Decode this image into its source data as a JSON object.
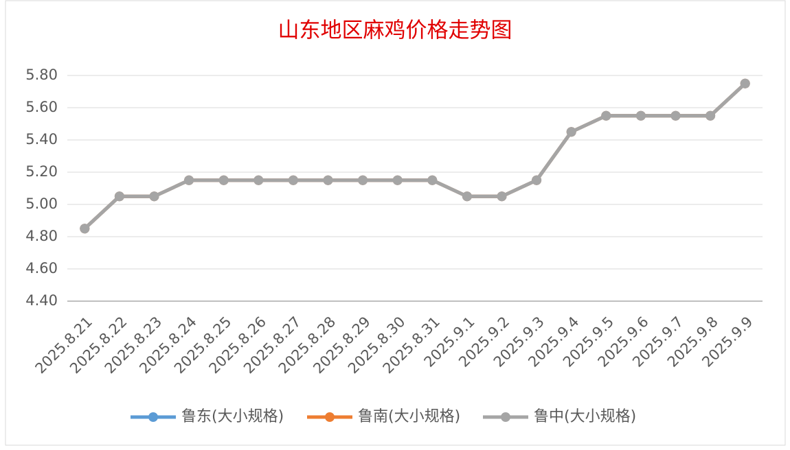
{
  "chart_data": {
    "type": "line",
    "title": "山东地区麻鸡价格走势图",
    "categories": [
      "2025.8.21",
      "2025.8.22",
      "2025.8.23",
      "2025.8.24",
      "2025.8.25",
      "2025.8.26",
      "2025.8.27",
      "2025.8.28",
      "2025.8.29",
      "2025.8.30",
      "2025.8.31",
      "2025.9.1",
      "2025.9.2",
      "2025.9.3",
      "2025.9.4",
      "2025.9.5",
      "2025.9.6",
      "2025.9.7",
      "2025.9.8",
      "2025.9.9"
    ],
    "series": [
      {
        "name": "鲁东(大小规格)",
        "color": "#5b9bd5",
        "values": [
          4.85,
          5.05,
          5.05,
          5.15,
          5.15,
          5.15,
          5.15,
          5.15,
          5.15,
          5.15,
          5.15,
          5.05,
          5.05,
          5.15,
          5.45,
          5.55,
          5.55,
          5.55,
          5.55,
          5.75
        ]
      },
      {
        "name": "鲁南(大小规格)",
        "color": "#ed7d31",
        "values": [
          4.85,
          5.05,
          5.05,
          5.15,
          5.15,
          5.15,
          5.15,
          5.15,
          5.15,
          5.15,
          5.15,
          5.05,
          5.05,
          5.15,
          5.45,
          5.55,
          5.55,
          5.55,
          5.55,
          5.75
        ]
      },
      {
        "name": "鲁中(大小规格)",
        "color": "#a5a5a5",
        "values": [
          4.85,
          5.05,
          5.05,
          5.15,
          5.15,
          5.15,
          5.15,
          5.15,
          5.15,
          5.15,
          5.15,
          5.05,
          5.05,
          5.15,
          5.45,
          5.55,
          5.55,
          5.55,
          5.55,
          5.75
        ]
      }
    ],
    "ylim": [
      4.4,
      5.8
    ],
    "yticks": [
      {
        "value": 4.4,
        "label": "4.40"
      },
      {
        "value": 4.6,
        "label": "4.60"
      },
      {
        "value": 4.8,
        "label": "4.80"
      },
      {
        "value": 5.0,
        "label": "5.00"
      },
      {
        "value": 5.2,
        "label": "5.20"
      },
      {
        "value": 5.4,
        "label": "5.40"
      },
      {
        "value": 5.6,
        "label": "5.60"
      },
      {
        "value": 5.8,
        "label": "5.80"
      }
    ],
    "grid": true,
    "legend": "bottom"
  }
}
